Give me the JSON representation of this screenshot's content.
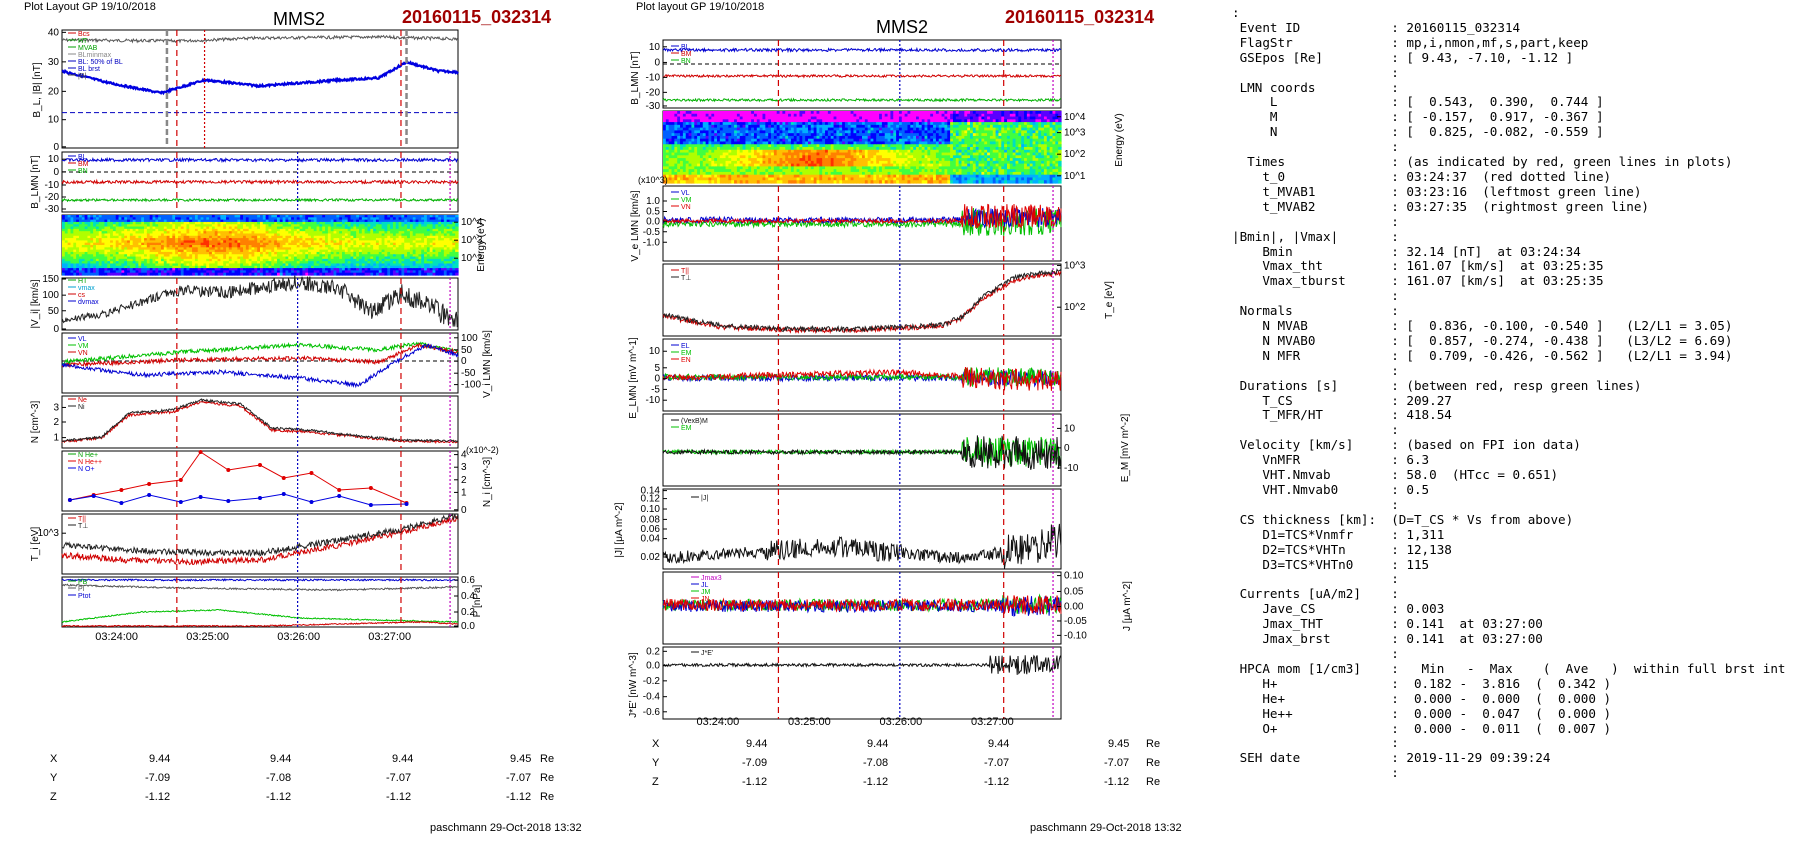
{
  "left": {
    "header": "Plot Layout GP 19/10/2018",
    "spacecraft": "MMS2",
    "event": "20160115_032314",
    "footer": "paschmann 29-Oct-2018 13:32",
    "time_ticks": [
      "03:24:00",
      "03:25:00",
      "03:26:00",
      "03:27:00"
    ],
    "coords": {
      "X": [
        "9.44",
        "9.44",
        "9.44",
        "9.45"
      ],
      "Y": [
        "-7.09",
        "-7.08",
        "-7.07",
        "-7.07"
      ],
      "Z": [
        "-1.12",
        "-1.12",
        "-1.12",
        "-1.12"
      ],
      "unit": "Re"
    },
    "panels": {
      "b": {
        "ylabel": "B_L, |B| [nT]",
        "ticks": [
          "40",
          "30",
          "20",
          "10",
          "0"
        ],
        "legend": [
          "Bcs",
          "HT",
          "MVAB",
          "BLminmax",
          "BL: 50% of BL",
          "BL brst",
          "|B|"
        ]
      },
      "blmn": {
        "ylabel": "B_LMN [nT]",
        "ticks": [
          "10",
          "0",
          "-10",
          "-20",
          "-30"
        ],
        "legend": [
          "BL",
          "BM",
          "BN"
        ]
      },
      "spec": {
        "ylabel": "Energy (eV)",
        "ticks": [
          "10^4",
          "10^3",
          "10^2"
        ]
      },
      "vi": {
        "ylabel": "|V_i| [km/s]",
        "ticks": [
          "150",
          "100",
          "50",
          "0"
        ],
        "legend": [
          "HT",
          "vmax",
          "cs",
          "dvmax"
        ]
      },
      "vilmn": {
        "ylabel": "V_i LMN [km/s]",
        "ticks": [
          "100",
          "50",
          "0",
          "-50",
          "-100"
        ],
        "legend": [
          "VL",
          "VM",
          "VN"
        ]
      },
      "n": {
        "ylabel": "N [cm^-3]",
        "ticks": [
          "3",
          "2",
          "1"
        ],
        "legend": [
          "Ne",
          "Ni"
        ]
      },
      "ni": {
        "ylabel": "N_i [cm^-3]",
        "scale": "(x10^-2)",
        "ticks": [
          "4",
          "3",
          "2",
          "1",
          "0"
        ],
        "legend": [
          "N He+",
          "N He++",
          "N O+"
        ]
      },
      "ti": {
        "ylabel": "T_i [eV]",
        "ticks": [
          "10^3"
        ],
        "legend": [
          "T||",
          "T⊥"
        ]
      },
      "p": {
        "ylabel": "P [nPa]",
        "ticks": [
          "0.6",
          "0.4",
          "0.2",
          "0.0"
        ],
        "legend": [
          "PB",
          "Pi",
          "Ptot"
        ]
      }
    }
  },
  "middle": {
    "header": "Plot layout GP 19/10/2018",
    "spacecraft": "MMS2",
    "event": "20160115_032314",
    "footer": "paschmann 29-Oct-2018 13:32",
    "time_ticks": [
      "03:24:00",
      "03:25:00",
      "03:26:00",
      "03:27:00"
    ],
    "coords": {
      "X": [
        "9.44",
        "9.44",
        "9.44",
        "9.45"
      ],
      "Y": [
        "-7.09",
        "-7.08",
        "-7.07",
        "-7.07"
      ],
      "Z": [
        "-1.12",
        "-1.12",
        "-1.12",
        "-1.12"
      ],
      "unit": "Re"
    },
    "panels": {
      "blmn": {
        "ylabel": "B_LMN [nT]",
        "ticks": [
          "10",
          "0",
          "-10",
          "-20",
          "-30"
        ],
        "legend": [
          "BL",
          "BM",
          "BN"
        ]
      },
      "spec": {
        "ylabel": "Energy (eV)",
        "ticks": [
          "10^4",
          "10^3",
          "10^2",
          "10^1"
        ]
      },
      "ve": {
        "ylabel": "V_e LMN [km/s]",
        "scale": "(x10^3)",
        "ticks": [
          "1.0",
          "0.5",
          "0.0",
          "-0.5",
          "-1.0"
        ],
        "legend": [
          "VL",
          "VM",
          "VN"
        ]
      },
      "te": {
        "ylabel": "T_e [eV]",
        "ticks": [
          "10^3",
          "10^2"
        ],
        "legend": [
          "T||",
          "T⊥"
        ]
      },
      "e": {
        "ylabel": "E_LMN [mV m^-1]",
        "ticks": [
          "10",
          "5",
          "0",
          "-5",
          "-10"
        ],
        "legend": [
          "EL",
          "EM",
          "EN"
        ]
      },
      "em": {
        "ylabel": "E_M [mV m^-2]",
        "ticks": [
          "10",
          "0",
          "-10"
        ],
        "legend": [
          "(VexB)M",
          "EM"
        ]
      },
      "j": {
        "ylabel": "|J| [μA m^-2]",
        "ticks": [
          "0.14",
          "0.12",
          "0.10",
          "0.08",
          "0.06",
          "0.04",
          "0.02"
        ],
        "legend": [
          "|J|"
        ]
      },
      "jlmn": {
        "ylabel": "J [μA m^-2]",
        "ticks": [
          "0.10",
          "0.05",
          "0.00",
          "-0.05",
          "-0.10"
        ],
        "legend": [
          "Jmax3",
          "JL",
          "JM",
          "JN"
        ]
      },
      "je": {
        "ylabel": "J*E' [nW m^-3]",
        "ticks": [
          "0.2",
          "0.0",
          "-0.2",
          "-0.4",
          "-0.6"
        ],
        "legend": [
          "J*E'"
        ]
      }
    }
  },
  "info_lines": [
    ":",
    " Event ID            : 20160115_032314",
    " FlagStr             : mp,i,nmon,mf,s,part,keep",
    " GSEpos [Re]         : [ 9.43, -7.10, -1.12 ]",
    "                     :",
    " LMN coords          :",
    "     L               : [  0.543,  0.390,  0.744 ]",
    "     M               : [ -0.157,  0.917, -0.367 ]",
    "     N               : [  0.825, -0.082, -0.559 ]",
    "                     :",
    "  Times              : (as indicated by red, green lines in plots)",
    "    t_0              : 03:24:37  (red dotted line)",
    "    t_MVAB1          : 03:23:16  (leftmost green line)",
    "    t_MVAB2          : 03:27:35  (rightmost green line)",
    "                     :",
    "|Bmin|, |Vmax|       :",
    "    Bmin             : 32.14 [nT]  at 03:24:34",
    "    Vmax_tht         : 161.07 [km/s]  at 03:25:35",
    "    Vmax_tburst      : 161.07 [km/s]  at 03:25:35",
    "                     :",
    " Normals             :",
    "    N MVAB           : [  0.836, -0.100, -0.540 ]   (L2/L1 = 3.05)",
    "    N MVAB0          : [  0.857, -0.274, -0.438 ]   (L3/L2 = 6.69)",
    "    N MFR            : [  0.709, -0.426, -0.562 ]   (L2/L1 = 3.94)",
    "                     :",
    " Durations [s]       : (between red, resp green lines)",
    "    T_CS             : 209.27",
    "    T_MFR/HT         : 418.54",
    "                     :",
    " Velocity [km/s]     : (based on FPI ion data)",
    "    VnMFR            : 6.3",
    "    VHT.Nmvab        : 58.0  (HTcc = 0.651)",
    "    VHT.Nmvab0       : 0.5",
    "                     :",
    " CS thickness [km]:  (D=T_CS * Vs from above)",
    "    D1=TCS*Vnmfr     : 1,311",
    "    D2=TCS*VHTn      : 12,138",
    "    D3=TCS*VHTn0     : 115",
    "                     :",
    " Currents [uA/m2]    :",
    "    Jave_CS          : 0.003",
    "    Jmax_THT         : 0.141  at 03:27:00",
    "    Jmax_brst        : 0.141  at 03:27:00",
    "                     :",
    " HPCA mom [1/cm3]    :   Min   -  Max    (  Ave   )  within full brst int",
    "    H+               :  0.182 -  3.816  (  0.342 )",
    "    He+              :  0.000 -  0.000  (  0.000 )",
    "    He++             :  0.000 -  0.047  (  0.000 )",
    "    O+               :  0.000 -  0.011  (  0.007 )",
    "                     :",
    " SEH date            : 2019-11-29 09:39:24",
    "                     :"
  ],
  "chart_data": [
    {
      "type": "line",
      "panel": "left B_L, |B|",
      "x_unit": "time",
      "ylim": [
        0,
        40
      ],
      "series": [
        {
          "name": "|B|",
          "values": [
            35,
            35,
            36,
            36,
            35,
            36,
            36,
            35,
            36,
            36,
            36,
            36,
            35
          ]
        },
        {
          "name": "BL brst",
          "values": [
            12,
            8,
            6,
            8,
            11,
            9,
            10,
            11,
            12,
            12,
            15,
            13,
            13
          ]
        }
      ]
    },
    {
      "type": "line",
      "panel": "left |V_i|",
      "ylim": [
        0,
        170
      ],
      "series": [
        {
          "values": [
            40,
            50,
            90,
            120,
            110,
            125,
            140,
            150,
            110,
            60,
            120,
            100,
            40
          ]
        }
      ]
    },
    {
      "type": "line",
      "panel": "left N",
      "ylim": [
        0,
        4
      ],
      "series": [
        {
          "name": "Ne",
          "values": [
            0.8,
            1,
            2.5,
            2.5,
            3.5,
            3.2,
            2,
            1.2,
            1,
            0.8,
            0.7,
            0.6,
            0.6
          ]
        },
        {
          "name": "Ni",
          "values": [
            0.8,
            1,
            2.6,
            2.6,
            3.6,
            3.3,
            2.1,
            1.2,
            1,
            0.8,
            0.7,
            0.6,
            0.6
          ]
        }
      ]
    },
    {
      "type": "line",
      "panel": "left N_i (x10^-2)",
      "ylim": [
        0,
        4
      ],
      "series": [
        {
          "name": "N He++",
          "values": [
            1,
            1.5,
            2,
            2.5,
            4,
            2.8,
            3,
            2,
            1.5,
            2,
            0.5,
            0.3
          ]
        },
        {
          "name": "N O+",
          "values": [
            0.5,
            1,
            0.7,
            1.1,
            0.8,
            1,
            0.6,
            1,
            0.5,
            0.8,
            0.3,
            0.4
          ]
        }
      ]
    },
    {
      "type": "line",
      "panel": "middle T_e",
      "ylim": [
        10,
        1000
      ],
      "series": [
        {
          "values": [
            90,
            50,
            30,
            25,
            25,
            25,
            25,
            30,
            50,
            200,
            500,
            700,
            800
          ]
        }
      ]
    },
    {
      "type": "line",
      "panel": "middle |J|",
      "ylim": [
        0.02,
        0.14
      ],
      "series": [
        {
          "values": [
            0.03,
            0.04,
            0.04,
            0.05,
            0.06,
            0.05,
            0.04,
            0.04,
            0.03,
            0.04,
            0.05,
            0.08,
            0.1
          ]
        }
      ]
    }
  ]
}
